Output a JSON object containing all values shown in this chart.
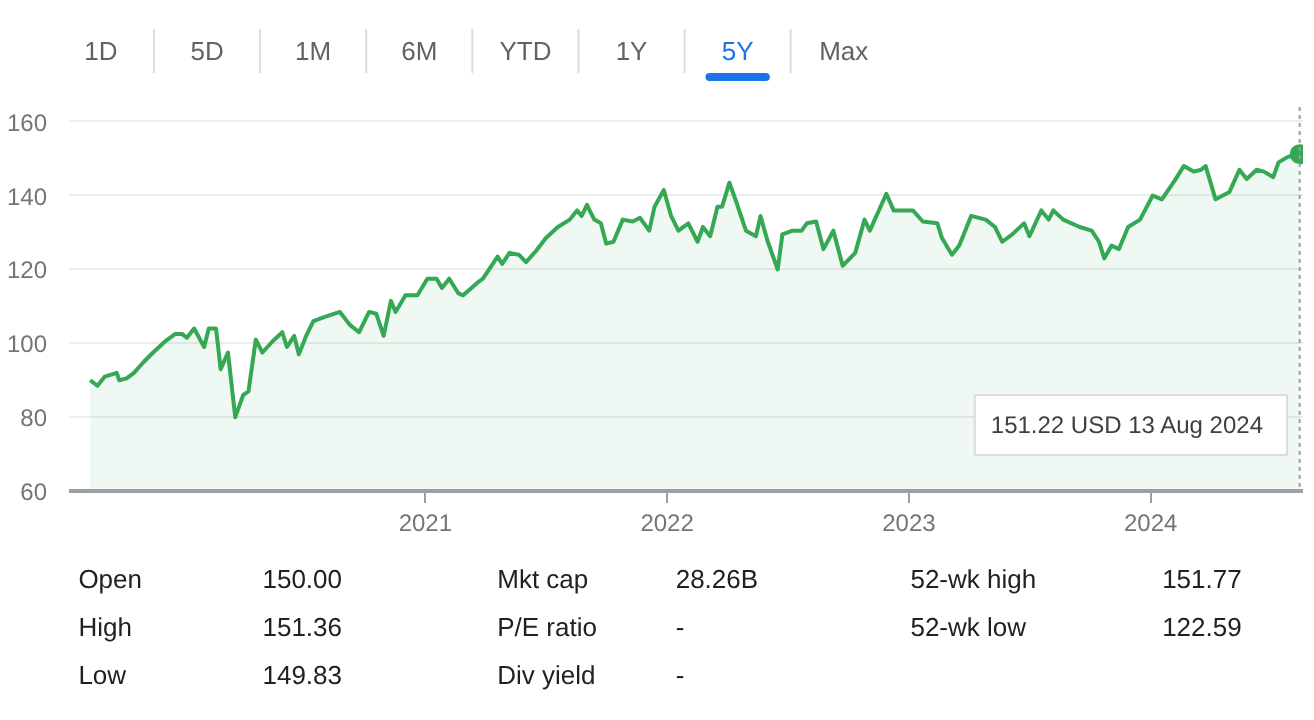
{
  "chart_data": [
    {
      "type": "other",
      "categories": [
        "1D",
        "5D",
        "1M",
        "6M",
        "YTD",
        "1Y",
        "5Y",
        "Max"
      ],
      "colors": [
        "#5f6368",
        "#5f6368",
        "#5f6368",
        "#5f6368",
        "#5f6368",
        "#5f6368",
        "#1a73e8",
        "#5f6368"
      ]
    },
    {
      "type": "area",
      "color": "#34a853",
      "x": [
        "2019-08-14",
        "2019-08-25",
        "2019-09-05",
        "2019-09-23",
        "2019-09-27",
        "2019-10-08",
        "2019-10-19",
        "2019-11-03",
        "2019-11-17",
        "2019-12-05",
        "2019-12-20",
        "2019-12-31",
        "2020-01-07",
        "2020-01-18",
        "2020-02-02",
        "2020-02-09",
        "2020-02-20",
        "2020-02-27",
        "2020-03-09",
        "2020-03-20",
        "2020-04-01",
        "2020-04-09",
        "2020-04-20",
        "2020-04-30",
        "2020-05-15",
        "2020-05-30",
        "2020-06-06",
        "2020-06-17",
        "2020-06-24",
        "2020-07-05",
        "2020-07-16",
        "2020-07-31",
        "2020-08-25",
        "2020-09-09",
        "2020-09-23",
        "2020-10-08",
        "2020-10-19",
        "2020-10-30",
        "2020-11-10",
        "2020-11-17",
        "2020-12-02",
        "2020-12-20",
        "2021-01-04",
        "2021-01-18",
        "2021-01-26",
        "2021-02-06",
        "2021-02-20",
        "2021-02-27",
        "2021-03-21",
        "2021-03-29",
        "2021-04-20",
        "2021-04-27",
        "2021-05-08",
        "2021-05-22",
        "2021-06-02",
        "2021-06-17",
        "2021-07-02",
        "2021-07-20",
        "2021-08-07",
        "2021-08-18",
        "2021-08-25",
        "2021-09-02",
        "2021-09-13",
        "2021-09-23",
        "2021-10-01",
        "2021-10-12",
        "2021-10-26",
        "2021-11-10",
        "2021-11-21",
        "2021-12-05",
        "2021-12-13",
        "2021-12-27",
        "2022-01-07",
        "2022-01-18",
        "2022-02-02",
        "2022-02-16",
        "2022-02-24",
        "2022-03-07",
        "2022-03-18",
        "2022-03-25",
        "2022-04-05",
        "2022-04-16",
        "2022-04-30",
        "2022-05-15",
        "2022-05-22",
        "2022-06-02",
        "2022-06-17",
        "2022-06-24",
        "2022-07-09",
        "2022-07-23",
        "2022-07-31",
        "2022-08-14",
        "2022-08-25",
        "2022-09-09",
        "2022-09-23",
        "2022-10-12",
        "2022-10-26",
        "2022-11-03",
        "2022-11-28",
        "2022-12-09",
        "2023-01-07",
        "2023-01-22",
        "2023-02-13",
        "2023-02-20",
        "2023-03-07",
        "2023-03-18",
        "2023-04-05",
        "2023-04-27",
        "2023-05-11",
        "2023-05-22",
        "2023-06-06",
        "2023-06-24",
        "2023-07-02",
        "2023-07-20",
        "2023-07-31",
        "2023-08-07",
        "2023-08-22",
        "2023-09-16",
        "2023-10-04",
        "2023-10-15",
        "2023-10-23",
        "2023-11-03",
        "2023-11-14",
        "2023-11-28",
        "2023-12-16",
        "2024-01-04",
        "2024-01-18",
        "2024-02-06",
        "2024-02-20",
        "2024-03-06",
        "2024-03-17",
        "2024-03-24",
        "2024-04-08",
        "2024-04-29",
        "2024-05-14",
        "2024-05-25",
        "2024-06-09",
        "2024-06-20",
        "2024-07-04",
        "2024-07-12",
        "2024-07-26",
        "2024-08-13"
      ],
      "values": [
        90,
        88.5,
        91,
        92,
        90,
        90.5,
        92,
        95,
        97.5,
        100.5,
        102.5,
        102.5,
        101.5,
        104,
        99,
        104,
        104,
        93,
        97.5,
        80,
        86,
        87,
        101,
        97.5,
        100.5,
        103,
        99,
        102,
        97,
        102,
        106,
        107,
        108.5,
        105,
        103,
        108.5,
        108,
        102,
        111.5,
        108.5,
        113,
        113,
        117.5,
        117.5,
        115,
        117.5,
        113.5,
        113,
        116.5,
        117.5,
        123.5,
        121.5,
        124.5,
        124,
        122,
        125,
        128.5,
        131.5,
        133.5,
        136,
        134.5,
        137.5,
        133.5,
        132.5,
        127,
        127.5,
        133.5,
        133,
        134,
        130.5,
        137,
        141.5,
        134.5,
        130.5,
        132.5,
        127.5,
        131.5,
        129,
        137,
        137,
        143.5,
        138,
        130.5,
        129,
        134.5,
        127.5,
        120,
        129.5,
        130.5,
        130.5,
        132.5,
        133,
        125.5,
        130.5,
        121,
        124.5,
        133.5,
        130.5,
        140.5,
        136,
        136,
        133,
        132.5,
        128.5,
        124,
        126.5,
        134.5,
        133.5,
        131.5,
        127.5,
        129.5,
        132.5,
        129,
        136,
        133.5,
        136,
        133.5,
        131.5,
        130.5,
        127.5,
        123,
        126.5,
        125.5,
        131.5,
        133.5,
        140,
        139,
        144,
        148,
        146.5,
        147,
        148,
        139,
        141,
        147,
        144.5,
        147,
        146.5,
        145,
        149,
        150.5,
        151.22
      ],
      "xlim": [
        "2019-07-13",
        "2024-08-18"
      ],
      "ylim": [
        60,
        164
      ],
      "yticks": [
        60,
        80,
        100,
        120,
        140,
        160
      ],
      "xticks": [
        {
          "value": "2021-01-01",
          "label": "2021"
        },
        {
          "value": "2022-01-01",
          "label": "2022"
        },
        {
          "value": "2023-01-01",
          "label": "2023"
        },
        {
          "value": "2024-01-01",
          "label": "2024"
        }
      ],
      "grid": "y",
      "ref_lines": [
        {
          "axis": "x",
          "value": "2024-08-13",
          "label": null,
          "color": "#9aa0a6",
          "line_style": "dotted"
        }
      ],
      "annotations": [
        "151.22 USD  13 Aug 2024"
      ]
    },
    {
      "type": "other",
      "annotations": [
        "Open",
        "150.00",
        "Mkt cap",
        "28.26B",
        "52-wk high",
        "151.77",
        "High",
        "151.36",
        "P/E ratio",
        "-",
        "52-wk low",
        "122.59",
        "Low",
        "149.83",
        "Div yield",
        "-"
      ]
    }
  ]
}
